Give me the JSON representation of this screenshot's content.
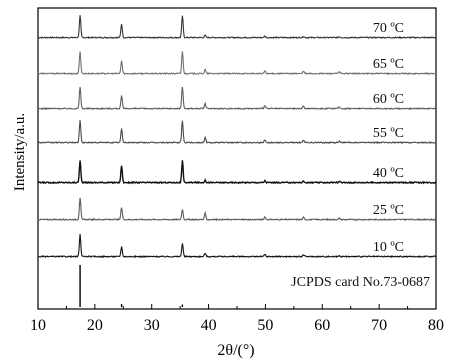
{
  "chart_data": {
    "type": "line",
    "title": "",
    "xlabel": "2θ/(°)",
    "ylabel": "Intensity/a.u.",
    "xlim": [
      10,
      80
    ],
    "x_ticks": [
      10,
      20,
      30,
      40,
      50,
      60,
      70,
      80
    ],
    "y_ticks_shown": false,
    "grid": false,
    "legend": "none",
    "peak_positions_2theta": [
      17.4,
      24.7,
      35.4,
      39.4,
      49.9,
      56.7,
      63.0
    ],
    "series": [
      {
        "name": "70 ºC",
        "color": "#333333",
        "peak_intensities": [
          1.0,
          0.62,
          1.0,
          0.1,
          0.06,
          0.05,
          0.04
        ]
      },
      {
        "name": "65 ºC",
        "color": "#707070",
        "peak_intensities": [
          1.0,
          0.58,
          1.0,
          0.18,
          0.12,
          0.1,
          0.07
        ]
      },
      {
        "name": "60 ºC",
        "color": "#5e5e5e",
        "peak_intensities": [
          1.0,
          0.58,
          1.0,
          0.22,
          0.14,
          0.12,
          0.07
        ]
      },
      {
        "name": "55 ºC",
        "color": "#4a4a4a",
        "peak_intensities": [
          1.0,
          0.62,
          1.0,
          0.22,
          0.12,
          0.1,
          0.06
        ]
      },
      {
        "name": "40 ºC",
        "color": "#111111",
        "peak_intensities": [
          1.0,
          0.78,
          1.0,
          0.1,
          0.08,
          0.06,
          0.05
        ]
      },
      {
        "name": "25 ºC",
        "color": "#5a5a5a",
        "peak_intensities": [
          1.0,
          0.55,
          0.48,
          0.28,
          0.12,
          0.1,
          0.06
        ]
      },
      {
        "name": "10 ºC",
        "color": "#111111",
        "peak_intensities": [
          1.0,
          0.45,
          0.6,
          0.16,
          0.1,
          0.08,
          0.05
        ]
      }
    ],
    "reference": {
      "name": "JCPDS card No.73-0687",
      "sticks": [
        {
          "x": 17.4,
          "intensity": 1.0
        },
        {
          "x": 24.7,
          "intensity": 0.07
        },
        {
          "x": 35.4,
          "intensity": 0.06
        }
      ]
    }
  }
}
